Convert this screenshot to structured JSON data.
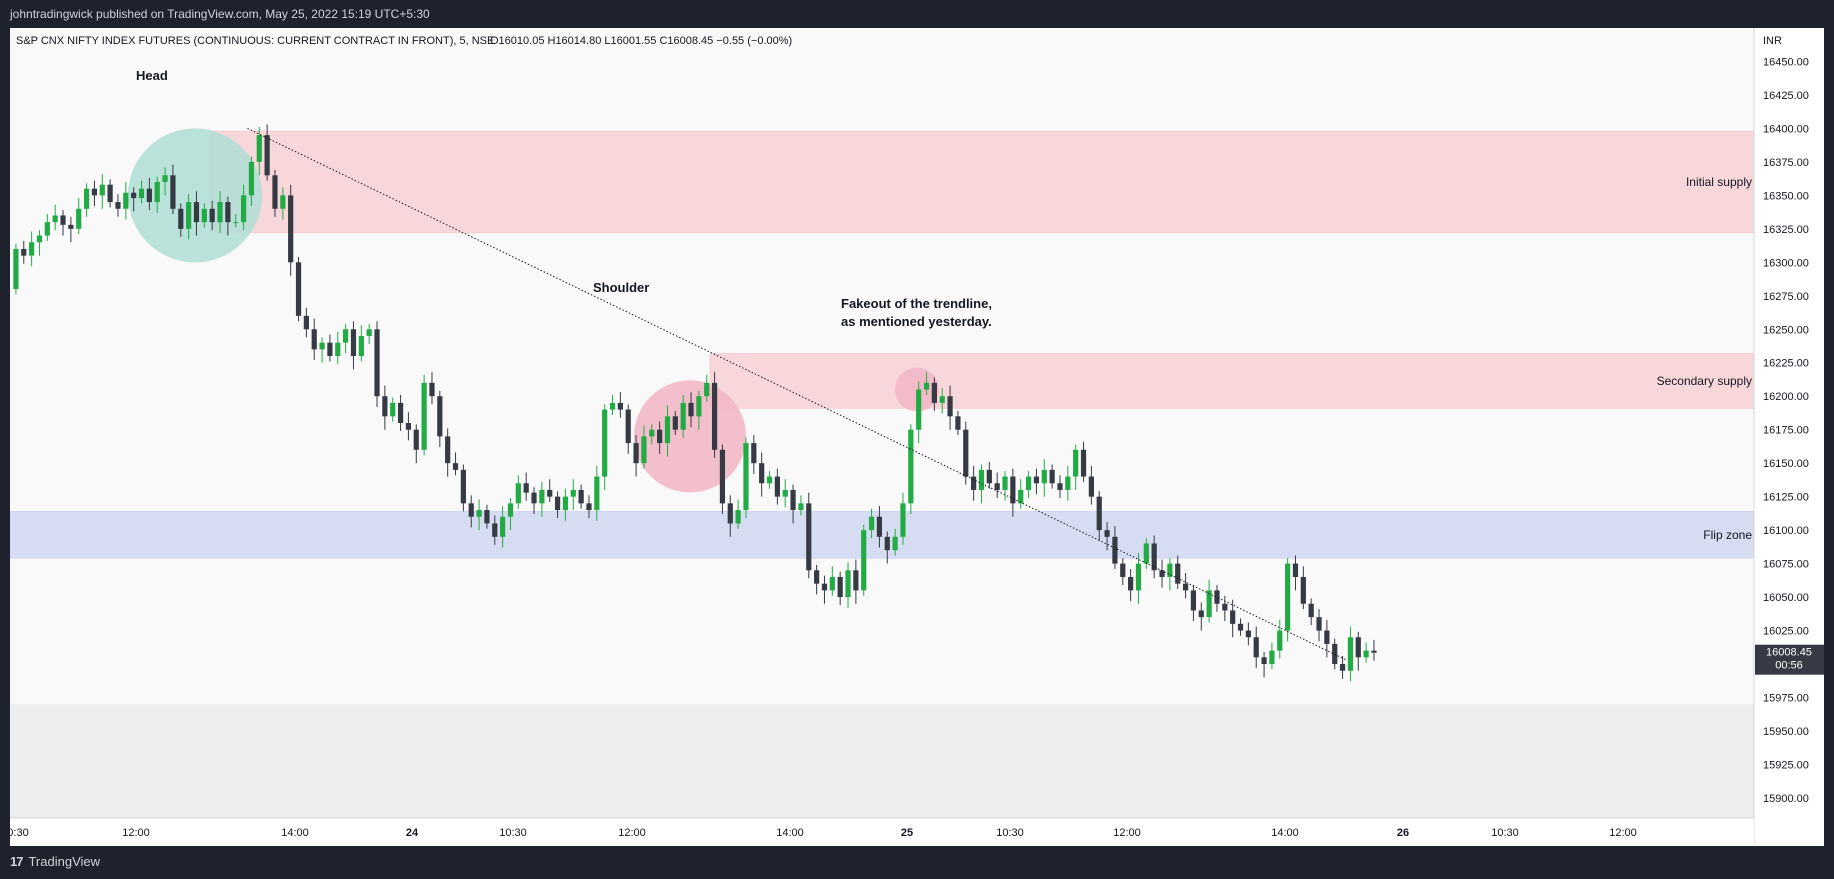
{
  "header": {
    "published": "johntradingwick published on TradingView.com, May 25, 2022 15:19 UTC+5:30"
  },
  "footer": {
    "brand": "TradingView",
    "logo_icon": "tradingview-logo-icon"
  },
  "chart_data": {
    "type": "candlestick",
    "title": "S&P CNX NIFTY INDEX FUTURES (CONTINUOUS: CURRENT CONTRACT IN FRONT), 5, NSE",
    "ohlc_readout": {
      "o": "O16010.05",
      "h": "H16014.80",
      "l": "L16001.55",
      "c": "C16008.45",
      "chg": "−0.55 (−0.00%)"
    },
    "currency": "INR",
    "ylim": [
      15885,
      16475
    ],
    "y_ticks": [
      "16450.00",
      "16425.00",
      "16400.00",
      "16375.00",
      "16350.00",
      "16325.00",
      "16300.00",
      "16275.00",
      "16250.00",
      "16225.00",
      "16200.00",
      "16175.00",
      "16150.00",
      "16125.00",
      "16100.00",
      "16075.00",
      "16050.00",
      "16025.00",
      "16000.00",
      "15975.00",
      "15950.00",
      "15925.00",
      "15900.00"
    ],
    "x_ticks": [
      "0:30",
      "12:00",
      "14:00",
      "24",
      "10:30",
      "12:00",
      "14:00",
      "25",
      "10:30",
      "12:00",
      "14:00",
      "26",
      "10:30",
      "12:00"
    ],
    "last_price": {
      "price": "16008.45",
      "countdown": "00:56",
      "value": 16008.45
    },
    "colors": {
      "up": "#22ab45",
      "down": "#363a45",
      "supply_zone": "#f8d7da",
      "flip_zone": "#d6dcf1",
      "head_circle": "#b3dfd6",
      "shoulder_circle": "#f2b8c6"
    },
    "zones": [
      {
        "label": "Initial supply",
        "from": 16322,
        "to": 16398
      },
      {
        "label": "Secondary supply",
        "from": 16191,
        "to": 16232
      },
      {
        "label": "Flip zone",
        "from": 16079,
        "to": 16114
      }
    ],
    "annotations": [
      {
        "text": "Head"
      },
      {
        "text": "Shoulder"
      },
      {
        "text": "Fakeout of the trendline,"
      },
      {
        "text": "as mentioned yesterday."
      }
    ],
    "trendline": {
      "from": {
        "bar": 30,
        "price": 16400
      },
      "to": {
        "bar": 170,
        "price": 16003
      }
    },
    "candles_oc": [
      [
        16280,
        16310
      ],
      [
        16310,
        16305
      ],
      [
        16305,
        16315
      ],
      [
        16315,
        16320
      ],
      [
        16320,
        16330
      ],
      [
        16330,
        16335
      ],
      [
        16335,
        16328
      ],
      [
        16328,
        16325
      ],
      [
        16325,
        16340
      ],
      [
        16340,
        16355
      ],
      [
        16355,
        16350
      ],
      [
        16350,
        16358
      ],
      [
        16358,
        16345
      ],
      [
        16345,
        16340
      ],
      [
        16340,
        16352
      ],
      [
        16352,
        16348
      ],
      [
        16348,
        16355
      ],
      [
        16355,
        16345
      ],
      [
        16345,
        16360
      ],
      [
        16360,
        16365
      ],
      [
        16365,
        16340
      ],
      [
        16340,
        16325
      ],
      [
        16325,
        16345
      ],
      [
        16345,
        16330
      ],
      [
        16330,
        16340
      ],
      [
        16340,
        16330
      ],
      [
        16330,
        16345
      ],
      [
        16345,
        16330
      ],
      [
        16330,
        16330
      ],
      [
        16330,
        16350
      ],
      [
        16350,
        16375
      ],
      [
        16375,
        16395
      ],
      [
        16395,
        16365
      ],
      [
        16365,
        16340
      ],
      [
        16340,
        16350
      ],
      [
        16350,
        16300
      ],
      [
        16300,
        16260
      ],
      [
        16260,
        16250
      ],
      [
        16250,
        16235
      ],
      [
        16235,
        16240
      ],
      [
        16240,
        16230
      ],
      [
        16230,
        16240
      ],
      [
        16240,
        16250
      ],
      [
        16250,
        16230
      ],
      [
        16230,
        16245
      ],
      [
        16245,
        16250
      ],
      [
        16250,
        16200
      ],
      [
        16200,
        16185
      ],
      [
        16185,
        16195
      ],
      [
        16195,
        16180
      ],
      [
        16180,
        16175
      ],
      [
        16175,
        16160
      ],
      [
        16160,
        16210
      ],
      [
        16210,
        16200
      ],
      [
        16200,
        16170
      ],
      [
        16170,
        16150
      ],
      [
        16150,
        16145
      ],
      [
        16145,
        16120
      ],
      [
        16120,
        16110
      ],
      [
        16110,
        16115
      ],
      [
        16115,
        16105
      ],
      [
        16105,
        16095
      ],
      [
        16095,
        16110
      ],
      [
        16110,
        16120
      ],
      [
        16120,
        16135
      ],
      [
        16135,
        16128
      ],
      [
        16128,
        16120
      ],
      [
        16120,
        16130
      ],
      [
        16130,
        16125
      ],
      [
        16125,
        16115
      ],
      [
        16115,
        16125
      ],
      [
        16125,
        16130
      ],
      [
        16130,
        16120
      ],
      [
        16120,
        16115
      ],
      [
        16115,
        16140
      ],
      [
        16140,
        16190
      ],
      [
        16190,
        16195
      ],
      [
        16195,
        16190
      ],
      [
        16190,
        16165
      ],
      [
        16165,
        16150
      ],
      [
        16150,
        16170
      ],
      [
        16170,
        16175
      ],
      [
        16175,
        16165
      ],
      [
        16165,
        16185
      ],
      [
        16185,
        16175
      ],
      [
        16175,
        16195
      ],
      [
        16195,
        16185
      ],
      [
        16185,
        16200
      ],
      [
        16200,
        16210
      ],
      [
        16210,
        16160
      ],
      [
        16160,
        16120
      ],
      [
        16120,
        16105
      ],
      [
        16105,
        16115
      ],
      [
        16115,
        16165
      ],
      [
        16165,
        16150
      ],
      [
        16150,
        16135
      ],
      [
        16135,
        16140
      ],
      [
        16140,
        16125
      ],
      [
        16125,
        16130
      ],
      [
        16130,
        16115
      ],
      [
        16115,
        16120
      ],
      [
        16120,
        16070
      ],
      [
        16070,
        16060
      ],
      [
        16060,
        16055
      ],
      [
        16055,
        16065
      ],
      [
        16065,
        16050
      ],
      [
        16050,
        16070
      ],
      [
        16070,
        16055
      ],
      [
        16055,
        16100
      ],
      [
        16100,
        16110
      ],
      [
        16110,
        16095
      ],
      [
        16095,
        16085
      ],
      [
        16085,
        16095
      ],
      [
        16095,
        16120
      ],
      [
        16120,
        16175
      ],
      [
        16175,
        16205
      ],
      [
        16205,
        16210
      ],
      [
        16210,
        16195
      ],
      [
        16195,
        16200
      ],
      [
        16200,
        16185
      ],
      [
        16185,
        16175
      ],
      [
        16175,
        16140
      ],
      [
        16140,
        16130
      ],
      [
        16130,
        16145
      ],
      [
        16145,
        16135
      ],
      [
        16135,
        16130
      ],
      [
        16130,
        16140
      ],
      [
        16140,
        16120
      ],
      [
        16120,
        16130
      ],
      [
        16130,
        16140
      ],
      [
        16140,
        16135
      ],
      [
        16135,
        16145
      ],
      [
        16145,
        16135
      ],
      [
        16135,
        16130
      ],
      [
        16130,
        16140
      ],
      [
        16140,
        16160
      ],
      [
        16160,
        16140
      ],
      [
        16140,
        16125
      ],
      [
        16125,
        16100
      ],
      [
        16100,
        16095
      ],
      [
        16095,
        16075
      ],
      [
        16075,
        16065
      ],
      [
        16065,
        16055
      ],
      [
        16055,
        16075
      ],
      [
        16075,
        16090
      ],
      [
        16090,
        16070
      ],
      [
        16070,
        16065
      ],
      [
        16065,
        16075
      ],
      [
        16075,
        16060
      ],
      [
        16060,
        16055
      ],
      [
        16055,
        16040
      ],
      [
        16040,
        16035
      ],
      [
        16035,
        16055
      ],
      [
        16055,
        16045
      ],
      [
        16045,
        16040
      ],
      [
        16040,
        16030
      ],
      [
        16030,
        16025
      ],
      [
        16025,
        16020
      ],
      [
        16020,
        16005
      ],
      [
        16005,
        16000
      ],
      [
        16000,
        16010
      ],
      [
        16010,
        16025
      ],
      [
        16025,
        16075
      ],
      [
        16075,
        16065
      ],
      [
        16065,
        16045
      ],
      [
        16045,
        16035
      ],
      [
        16035,
        16025
      ],
      [
        16025,
        16015
      ],
      [
        16015,
        16000
      ],
      [
        16000,
        15995
      ],
      [
        15995,
        16020
      ],
      [
        16020,
        16005
      ],
      [
        16005,
        16010
      ],
      [
        16010,
        16008.45
      ]
    ]
  }
}
